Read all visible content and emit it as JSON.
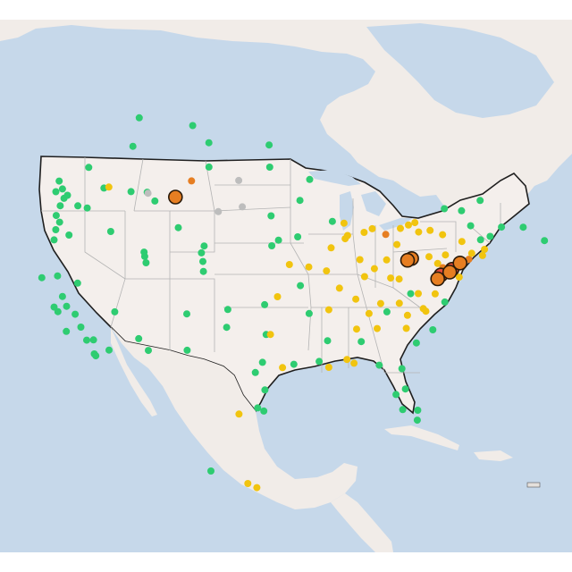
{
  "map": {
    "basemap": "light-reference",
    "projection": "conic-north-america",
    "colors": {
      "water": "#c6d8ea",
      "land": "#f1ece8",
      "land_shade": "#e4e0dc",
      "us_fill": "#f4efec",
      "state_border": "#b4b4b4",
      "country_border": "#1f1f1f",
      "station_outline": "#2a1a0a"
    },
    "legend_colors": {
      "good": "#2ecc71",
      "moderate": "#f1c40f",
      "unhealthy_sensitive": "#e67e22",
      "unhealthy": "#e74c3c",
      "no_data": "#bdbdbd"
    }
  },
  "stations": [
    {
      "lon": -122.6,
      "lat": 48.5,
      "level": "good"
    },
    {
      "lon": -122.3,
      "lat": 47.6,
      "level": "good"
    },
    {
      "lon": -122.7,
      "lat": 47.0,
      "level": "good"
    },
    {
      "lon": -121.9,
      "lat": 47.8,
      "level": "good"
    },
    {
      "lon": -123.1,
      "lat": 46.2,
      "level": "good"
    },
    {
      "lon": -122.6,
      "lat": 45.5,
      "level": "good"
    },
    {
      "lon": -123.0,
      "lat": 44.9,
      "level": "good"
    },
    {
      "lon": -123.1,
      "lat": 44.0,
      "level": "good"
    },
    {
      "lon": -121.3,
      "lat": 44.1,
      "level": "good"
    },
    {
      "lon": -120.5,
      "lat": 46.6,
      "level": "good"
    },
    {
      "lon": -119.3,
      "lat": 46.2,
      "level": "good"
    },
    {
      "lon": -117.4,
      "lat": 47.7,
      "level": "good"
    },
    {
      "lon": -116.8,
      "lat": 47.7,
      "level": "moderate"
    },
    {
      "lon": -116.2,
      "lat": 43.6,
      "level": "good"
    },
    {
      "lon": -114.0,
      "lat": 46.9,
      "level": "good"
    },
    {
      "lon": -112.0,
      "lat": 46.6,
      "level": "good"
    },
    {
      "lon": -111.0,
      "lat": 45.7,
      "level": "good"
    },
    {
      "lon": -108.5,
      "lat": 45.8,
      "level": "unhealthy_sensitive",
      "big": true
    },
    {
      "lon": -106.6,
      "lat": 47.1,
      "level": "unhealthy_sensitive"
    },
    {
      "lon": -104.5,
      "lat": 48.2,
      "level": "good"
    },
    {
      "lon": -111.9,
      "lat": 40.8,
      "level": "good"
    },
    {
      "lon": -111.7,
      "lat": 40.2,
      "level": "good"
    },
    {
      "lon": -112.0,
      "lat": 41.2,
      "level": "good"
    },
    {
      "lon": -108.0,
      "lat": 43.0,
      "level": "good"
    },
    {
      "lon": -104.8,
      "lat": 41.1,
      "level": "good"
    },
    {
      "lon": -104.9,
      "lat": 39.7,
      "level": "good"
    },
    {
      "lon": -105.1,
      "lat": 40.5,
      "level": "good"
    },
    {
      "lon": -104.8,
      "lat": 38.8,
      "level": "good"
    },
    {
      "lon": -106.6,
      "lat": 35.1,
      "level": "good"
    },
    {
      "lon": -106.4,
      "lat": 31.8,
      "level": "good"
    },
    {
      "lon": -112.1,
      "lat": 33.4,
      "level": "good"
    },
    {
      "lon": -110.9,
      "lat": 32.2,
      "level": "good"
    },
    {
      "lon": -115.1,
      "lat": 36.2,
      "level": "good"
    },
    {
      "lon": -119.8,
      "lat": 39.5,
      "level": "good"
    },
    {
      "lon": -121.5,
      "lat": 38.6,
      "level": "good"
    },
    {
      "lon": -122.4,
      "lat": 37.8,
      "level": "good"
    },
    {
      "lon": -121.9,
      "lat": 37.3,
      "level": "good"
    },
    {
      "lon": -120.9,
      "lat": 37.6,
      "level": "good"
    },
    {
      "lon": -119.8,
      "lat": 36.7,
      "level": "good"
    },
    {
      "lon": -119.0,
      "lat": 35.4,
      "level": "good"
    },
    {
      "lon": -118.2,
      "lat": 34.1,
      "level": "good"
    },
    {
      "lon": -117.4,
      "lat": 34.0,
      "level": "good"
    },
    {
      "lon": -117.2,
      "lat": 32.7,
      "level": "good"
    },
    {
      "lon": -115.5,
      "lat": 32.8,
      "level": "good"
    },
    {
      "lon": -124.2,
      "lat": 40.8,
      "level": "good"
    },
    {
      "lon": -122.3,
      "lat": 40.6,
      "level": "good"
    },
    {
      "lon": -120.7,
      "lat": 35.3,
      "level": "good"
    },
    {
      "lon": -101.8,
      "lat": 35.2,
      "level": "good"
    },
    {
      "lon": -101.9,
      "lat": 33.6,
      "level": "good"
    },
    {
      "lon": -97.5,
      "lat": 35.5,
      "level": "good"
    },
    {
      "lon": -96.0,
      "lat": 36.2,
      "level": "moderate"
    },
    {
      "lon": -97.3,
      "lat": 32.8,
      "level": "good"
    },
    {
      "lon": -96.8,
      "lat": 32.8,
      "level": "moderate"
    },
    {
      "lon": -97.7,
      "lat": 30.3,
      "level": "good"
    },
    {
      "lon": -98.5,
      "lat": 29.4,
      "level": "good"
    },
    {
      "lon": -95.4,
      "lat": 29.8,
      "level": "moderate"
    },
    {
      "lon": -94.1,
      "lat": 30.1,
      "level": "good"
    },
    {
      "lon": -97.4,
      "lat": 27.8,
      "level": "good"
    },
    {
      "lon": -97.5,
      "lat": 25.9,
      "level": "good"
    },
    {
      "lon": -98.2,
      "lat": 26.2,
      "level": "good"
    },
    {
      "lon": -100.3,
      "lat": 25.7,
      "level": "moderate"
    },
    {
      "lon": -90.1,
      "lat": 29.9,
      "level": "moderate"
    },
    {
      "lon": -91.2,
      "lat": 30.4,
      "level": "good"
    },
    {
      "lon": -88.0,
      "lat": 30.7,
      "level": "moderate"
    },
    {
      "lon": -87.2,
      "lat": 30.4,
      "level": "moderate"
    },
    {
      "lon": -84.3,
      "lat": 30.4,
      "level": "good"
    },
    {
      "lon": -81.7,
      "lat": 30.3,
      "level": "good"
    },
    {
      "lon": -82.5,
      "lat": 27.9,
      "level": "good"
    },
    {
      "lon": -81.4,
      "lat": 28.5,
      "level": "good"
    },
    {
      "lon": -80.2,
      "lat": 25.8,
      "level": "good"
    },
    {
      "lon": -80.1,
      "lat": 26.7,
      "level": "good"
    },
    {
      "lon": -81.8,
      "lat": 26.6,
      "level": "good"
    },
    {
      "lon": -84.4,
      "lat": 33.7,
      "level": "moderate"
    },
    {
      "lon": -86.8,
      "lat": 33.5,
      "level": "moderate"
    },
    {
      "lon": -86.3,
      "lat": 32.4,
      "level": "good"
    },
    {
      "lon": -90.2,
      "lat": 32.3,
      "level": "good"
    },
    {
      "lon": -92.3,
      "lat": 34.7,
      "level": "good"
    },
    {
      "lon": -90.0,
      "lat": 35.1,
      "level": "moderate"
    },
    {
      "lon": -86.8,
      "lat": 36.2,
      "level": "moderate"
    },
    {
      "lon": -85.3,
      "lat": 35.0,
      "level": "moderate"
    },
    {
      "lon": -83.9,
      "lat": 36.0,
      "level": "moderate"
    },
    {
      "lon": -80.8,
      "lat": 35.2,
      "level": "moderate"
    },
    {
      "lon": -78.6,
      "lat": 35.8,
      "level": "moderate"
    },
    {
      "lon": -79.9,
      "lat": 32.8,
      "level": "good"
    },
    {
      "lon": -81.0,
      "lat": 34.0,
      "level": "moderate"
    },
    {
      "lon": -77.9,
      "lat": 34.2,
      "level": "good"
    },
    {
      "lon": -76.3,
      "lat": 36.9,
      "level": "good"
    },
    {
      "lon": -77.4,
      "lat": 37.5,
      "level": "moderate"
    },
    {
      "lon": -94.6,
      "lat": 39.1,
      "level": "moderate"
    },
    {
      "lon": -90.2,
      "lat": 38.6,
      "level": "moderate"
    },
    {
      "lon": -93.3,
      "lat": 37.2,
      "level": "good"
    },
    {
      "lon": -95.9,
      "lat": 41.3,
      "level": "good"
    },
    {
      "lon": -96.7,
      "lat": 40.8,
      "level": "good"
    },
    {
      "lon": -93.6,
      "lat": 41.6,
      "level": "good"
    },
    {
      "lon": -93.3,
      "lat": 44.9,
      "level": "good"
    },
    {
      "lon": -96.8,
      "lat": 43.5,
      "level": "good"
    },
    {
      "lon": -100.8,
      "lat": 46.8,
      "level": "no_data"
    },
    {
      "lon": -100.3,
      "lat": 44.4,
      "level": "no_data"
    },
    {
      "lon": -97.0,
      "lat": 47.9,
      "level": "good"
    },
    {
      "lon": -92.1,
      "lat": 46.8,
      "level": "good"
    },
    {
      "lon": -88.0,
      "lat": 43.0,
      "level": "moderate"
    },
    {
      "lon": -89.4,
      "lat": 43.1,
      "level": "good"
    },
    {
      "lon": -87.6,
      "lat": 41.9,
      "level": "moderate"
    },
    {
      "lon": -87.9,
      "lat": 41.6,
      "level": "moderate"
    },
    {
      "lon": -86.2,
      "lat": 39.8,
      "level": "moderate"
    },
    {
      "lon": -85.7,
      "lat": 38.3,
      "level": "moderate"
    },
    {
      "lon": -84.5,
      "lat": 39.1,
      "level": "moderate"
    },
    {
      "lon": -83.0,
      "lat": 40.0,
      "level": "moderate"
    },
    {
      "lon": -81.7,
      "lat": 41.5,
      "level": "moderate"
    },
    {
      "lon": -83.0,
      "lat": 42.3,
      "level": "unhealthy_sensitive"
    },
    {
      "lon": -85.6,
      "lat": 42.3,
      "level": "moderate"
    },
    {
      "lon": -84.6,
      "lat": 42.7,
      "level": "moderate"
    },
    {
      "lon": -80.0,
      "lat": 40.4,
      "level": "unhealthy_sensitive",
      "big": true
    },
    {
      "lon": -80.5,
      "lat": 40.2,
      "level": "unhealthy_sensitive",
      "big": true
    },
    {
      "lon": -79.0,
      "lat": 42.9,
      "level": "moderate"
    },
    {
      "lon": -77.6,
      "lat": 43.2,
      "level": "moderate"
    },
    {
      "lon": -76.1,
      "lat": 43.0,
      "level": "moderate"
    },
    {
      "lon": -73.8,
      "lat": 42.7,
      "level": "moderate"
    },
    {
      "lon": -75.2,
      "lat": 40.0,
      "level": "unhealthy",
      "big": true
    },
    {
      "lon": -76.6,
      "lat": 39.3,
      "level": "unhealthy",
      "big": true
    },
    {
      "lon": -77.0,
      "lat": 38.9,
      "level": "unhealthy_sensitive",
      "big": true
    },
    {
      "lon": -75.5,
      "lat": 39.7,
      "level": "unhealthy_sensitive",
      "big": true
    },
    {
      "lon": -74.2,
      "lat": 40.7,
      "level": "unhealthy_sensitive",
      "big": true
    },
    {
      "lon": -74.0,
      "lat": 40.8,
      "level": "unhealthy_sensitive"
    },
    {
      "lon": -73.1,
      "lat": 41.2,
      "level": "unhealthy_sensitive"
    },
    {
      "lon": -72.7,
      "lat": 41.8,
      "level": "moderate"
    },
    {
      "lon": -71.4,
      "lat": 41.8,
      "level": "moderate"
    },
    {
      "lon": -71.1,
      "lat": 42.4,
      "level": "moderate"
    },
    {
      "lon": -70.3,
      "lat": 43.7,
      "level": "good"
    },
    {
      "lon": -68.8,
      "lat": 44.8,
      "level": "good"
    },
    {
      "lon": -72.6,
      "lat": 44.3,
      "level": "good"
    },
    {
      "lon": -71.5,
      "lat": 43.2,
      "level": "good"
    },
    {
      "lon": -66.1,
      "lat": 45.3,
      "level": "good"
    },
    {
      "lon": -63.6,
      "lat": 44.6,
      "level": "good"
    },
    {
      "lon": -71.2,
      "lat": 46.8,
      "level": "good"
    },
    {
      "lon": -73.6,
      "lat": 45.5,
      "level": "good"
    },
    {
      "lon": -75.7,
      "lat": 45.4,
      "level": "good"
    },
    {
      "lon": -79.4,
      "lat": 43.7,
      "level": "moderate"
    },
    {
      "lon": -81.2,
      "lat": 43.0,
      "level": "moderate"
    },
    {
      "lon": -80.2,
      "lat": 43.4,
      "level": "moderate"
    },
    {
      "lon": -123.1,
      "lat": 49.3,
      "level": "good"
    },
    {
      "lon": -123.4,
      "lat": 48.4,
      "level": "good"
    },
    {
      "lon": -119.5,
      "lat": 49.9,
      "level": "good"
    },
    {
      "lon": -114.1,
      "lat": 51.0,
      "level": "good"
    },
    {
      "lon": -113.5,
      "lat": 53.5,
      "level": "good"
    },
    {
      "lon": -106.7,
      "lat": 52.1,
      "level": "good"
    },
    {
      "lon": -104.6,
      "lat": 50.4,
      "level": "good"
    },
    {
      "lon": -97.1,
      "lat": 49.9,
      "level": "good"
    },
    {
      "lon": -99.2,
      "lat": 19.4,
      "level": "moderate"
    },
    {
      "lon": -98.2,
      "lat": 19.0,
      "level": "moderate"
    },
    {
      "lon": -103.3,
      "lat": 20.7,
      "level": "good"
    },
    {
      "lon": -117.0,
      "lat": 32.5,
      "level": "good"
    },
    {
      "lon": -111.9,
      "lat": 46.5,
      "level": "no_data"
    },
    {
      "lon": -103.2,
      "lat": 44.1,
      "level": "no_data"
    },
    {
      "lon": -89.6,
      "lat": 40.7,
      "level": "moderate"
    },
    {
      "lon": -92.3,
      "lat": 38.9,
      "level": "moderate"
    },
    {
      "lon": -88.7,
      "lat": 37.1,
      "level": "moderate"
    },
    {
      "lon": -82.6,
      "lat": 38.4,
      "level": "moderate"
    },
    {
      "lon": -81.6,
      "lat": 38.4,
      "level": "moderate"
    },
    {
      "lon": -79.4,
      "lat": 37.3,
      "level": "moderate"
    },
    {
      "lon": -80.3,
      "lat": 37.2,
      "level": "good"
    },
    {
      "lon": -78.9,
      "lat": 36.0,
      "level": "moderate"
    },
    {
      "lon": -81.7,
      "lat": 36.2,
      "level": "moderate"
    },
    {
      "lon": -83.2,
      "lat": 35.3,
      "level": "good"
    },
    {
      "lon": -76.9,
      "lat": 40.3,
      "level": "moderate"
    },
    {
      "lon": -75.9,
      "lat": 41.2,
      "level": "moderate"
    },
    {
      "lon": -76.3,
      "lat": 40.0,
      "level": "unhealthy_sensitive"
    },
    {
      "lon": -77.9,
      "lat": 40.8,
      "level": "moderate"
    },
    {
      "lon": -74.7,
      "lat": 40.2,
      "level": "unhealthy_sensitive"
    },
    {
      "lon": -74.4,
      "lat": 39.4,
      "level": "moderate"
    }
  ]
}
